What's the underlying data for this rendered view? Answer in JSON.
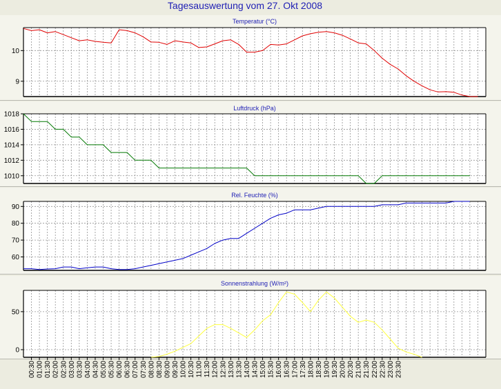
{
  "page": {
    "title": "Tagesauswertung vom 27. Okt 2008",
    "background": "#ecece0",
    "title_color": "#1e1eb4",
    "subtitle_color": "#1e1eb4"
  },
  "time_labels": [
    "00:30",
    "01:00",
    "01:30",
    "02:00",
    "02:30",
    "03:00",
    "03:30",
    "04:00",
    "04:30",
    "05:00",
    "05:30",
    "06:00",
    "06:30",
    "07:00",
    "07:30",
    "08:00",
    "08:30",
    "09:00",
    "09:30",
    "10:00",
    "10:30",
    "11:00",
    "11:30",
    "12:00",
    "12:30",
    "13:00",
    "13:30",
    "14:00",
    "14:30",
    "15:00",
    "15:30",
    "16:00",
    "16:30",
    "17:00",
    "17:30",
    "18:00",
    "18:30",
    "19:00",
    "19:30",
    "20:00",
    "20:30",
    "21:00",
    "21:30",
    "22:00",
    "22:30",
    "23:00",
    "23:30"
  ],
  "chart_data": [
    {
      "type": "line",
      "title": "Temperatur (°C)",
      "grid": true,
      "ylim": [
        8.5,
        10.75
      ],
      "yticks": [
        9,
        10
      ],
      "series": [
        {
          "color": "#e00000",
          "points": [
            [
              0,
              10.72
            ],
            [
              1,
              10.65
            ],
            [
              2,
              10.68
            ],
            [
              3,
              10.58
            ],
            [
              4,
              10.62
            ],
            [
              5,
              10.52
            ],
            [
              6,
              10.42
            ],
            [
              7,
              10.32
            ],
            [
              8,
              10.35
            ],
            [
              9,
              10.3
            ],
            [
              10,
              10.27
            ],
            [
              11,
              10.25
            ],
            [
              12,
              10.68
            ],
            [
              13,
              10.65
            ],
            [
              14,
              10.58
            ],
            [
              15,
              10.45
            ],
            [
              16,
              10.28
            ],
            [
              17,
              10.27
            ],
            [
              18,
              10.2
            ],
            [
              19,
              10.32
            ],
            [
              20,
              10.28
            ],
            [
              21,
              10.25
            ],
            [
              22,
              10.1
            ],
            [
              23,
              10.12
            ],
            [
              24,
              10.22
            ],
            [
              25,
              10.32
            ],
            [
              26,
              10.35
            ],
            [
              27,
              10.2
            ],
            [
              28,
              9.95
            ],
            [
              29,
              9.95
            ],
            [
              30,
              10.0
            ],
            [
              31,
              10.2
            ],
            [
              32,
              10.18
            ],
            [
              33,
              10.22
            ],
            [
              34,
              10.35
            ],
            [
              35,
              10.48
            ],
            [
              36,
              10.55
            ],
            [
              37,
              10.6
            ],
            [
              38,
              10.62
            ],
            [
              39,
              10.58
            ],
            [
              40,
              10.5
            ],
            [
              41,
              10.38
            ],
            [
              42,
              10.25
            ],
            [
              43,
              10.22
            ],
            [
              44,
              10.0
            ],
            [
              45,
              9.75
            ],
            [
              46,
              9.55
            ],
            [
              47,
              9.4
            ],
            [
              48,
              9.18
            ],
            [
              49,
              9.0
            ],
            [
              50,
              8.85
            ],
            [
              51,
              8.72
            ],
            [
              52,
              8.65
            ],
            [
              53,
              8.66
            ],
            [
              54,
              8.64
            ],
            [
              55,
              8.55
            ],
            [
              56,
              8.5
            ],
            [
              57,
              8.5
            ]
          ]
        }
      ]
    },
    {
      "type": "line",
      "title": "Luftdruck (hPa)",
      "grid": true,
      "ylim": [
        1009,
        1018
      ],
      "yticks": [
        1010,
        1012,
        1014,
        1016,
        1018
      ],
      "series": [
        {
          "color": "#007800",
          "points": [
            [
              0,
              1018
            ],
            [
              1,
              1017
            ],
            [
              2,
              1017
            ],
            [
              3,
              1017
            ],
            [
              4,
              1016
            ],
            [
              5,
              1016
            ],
            [
              6,
              1015
            ],
            [
              7,
              1015
            ],
            [
              8,
              1014
            ],
            [
              9,
              1014
            ],
            [
              10,
              1014
            ],
            [
              11,
              1013
            ],
            [
              12,
              1013
            ],
            [
              13,
              1013
            ],
            [
              14,
              1012
            ],
            [
              15,
              1012
            ],
            [
              16,
              1012
            ],
            [
              17,
              1011
            ],
            [
              18,
              1011
            ],
            [
              19,
              1011
            ],
            [
              20,
              1011
            ],
            [
              21,
              1011
            ],
            [
              22,
              1011
            ],
            [
              23,
              1011
            ],
            [
              24,
              1011
            ],
            [
              25,
              1011
            ],
            [
              26,
              1011
            ],
            [
              27,
              1011
            ],
            [
              28,
              1011
            ],
            [
              29,
              1010
            ],
            [
              30,
              1010
            ],
            [
              31,
              1010
            ],
            [
              32,
              1010
            ],
            [
              33,
              1010
            ],
            [
              34,
              1010
            ],
            [
              35,
              1010
            ],
            [
              36,
              1010
            ],
            [
              37,
              1010
            ],
            [
              38,
              1010
            ],
            [
              39,
              1010
            ],
            [
              40,
              1010
            ],
            [
              41,
              1010
            ],
            [
              42,
              1010
            ],
            [
              43,
              1009
            ],
            [
              44,
              1009
            ],
            [
              45,
              1010
            ],
            [
              46,
              1010
            ],
            [
              47,
              1010
            ],
            [
              48,
              1010
            ],
            [
              49,
              1010
            ],
            [
              50,
              1010
            ],
            [
              51,
              1010
            ],
            [
              52,
              1010
            ],
            [
              53,
              1010
            ],
            [
              54,
              1010
            ],
            [
              55,
              1010
            ],
            [
              56,
              1010
            ]
          ]
        }
      ]
    },
    {
      "type": "line",
      "title": "Rel. Feuchte (%)",
      "grid": true,
      "ylim": [
        52,
        93
      ],
      "yticks": [
        60,
        70,
        80,
        90
      ],
      "series": [
        {
          "color": "#0000c8",
          "points": [
            [
              0,
              53
            ],
            [
              1,
              53
            ],
            [
              2,
              52.5
            ],
            [
              3,
              52.8
            ],
            [
              4,
              53
            ],
            [
              5,
              54
            ],
            [
              6,
              54
            ],
            [
              7,
              53
            ],
            [
              8,
              53.5
            ],
            [
              9,
              54
            ],
            [
              10,
              54
            ],
            [
              11,
              53
            ],
            [
              12,
              52.5
            ],
            [
              13,
              52.5
            ],
            [
              14,
              53
            ],
            [
              15,
              54
            ],
            [
              16,
              55
            ],
            [
              17,
              56
            ],
            [
              18,
              57
            ],
            [
              19,
              58
            ],
            [
              20,
              59
            ],
            [
              21,
              61
            ],
            [
              22,
              63
            ],
            [
              23,
              65
            ],
            [
              24,
              68
            ],
            [
              25,
              70
            ],
            [
              26,
              71
            ],
            [
              27,
              71
            ],
            [
              28,
              74
            ],
            [
              29,
              77
            ],
            [
              30,
              80
            ],
            [
              31,
              83
            ],
            [
              32,
              85
            ],
            [
              33,
              86
            ],
            [
              34,
              88
            ],
            [
              35,
              88
            ],
            [
              36,
              88
            ],
            [
              37,
              89
            ],
            [
              38,
              90
            ],
            [
              39,
              90
            ],
            [
              40,
              90
            ],
            [
              41,
              90
            ],
            [
              42,
              90
            ],
            [
              43,
              90
            ],
            [
              44,
              90
            ],
            [
              45,
              91
            ],
            [
              46,
              91
            ],
            [
              47,
              91
            ],
            [
              48,
              92
            ],
            [
              49,
              92
            ],
            [
              50,
              92
            ],
            [
              51,
              92
            ],
            [
              52,
              92
            ],
            [
              53,
              92
            ],
            [
              54,
              93
            ],
            [
              55,
              93
            ],
            [
              56,
              93
            ]
          ]
        }
      ]
    },
    {
      "type": "line",
      "title": "Sonnenstrahlung (W/m²)",
      "grid": true,
      "ylim": [
        -10,
        78
      ],
      "yticks": [
        0,
        50
      ],
      "series": [
        {
          "color": "#ffff3c",
          "points": [
            [
              16,
              -10
            ],
            [
              17,
              -9
            ],
            [
              18,
              -6
            ],
            [
              19,
              -2
            ],
            [
              20,
              3
            ],
            [
              21,
              8
            ],
            [
              22,
              18
            ],
            [
              23,
              28
            ],
            [
              24,
              33
            ],
            [
              25,
              33
            ],
            [
              26,
              28
            ],
            [
              27,
              22
            ],
            [
              28,
              16
            ],
            [
              29,
              26
            ],
            [
              30,
              38
            ],
            [
              31,
              46
            ],
            [
              32,
              62
            ],
            [
              33,
              76
            ],
            [
              34,
              73
            ],
            [
              35,
              62
            ],
            [
              36,
              50
            ],
            [
              37,
              65
            ],
            [
              38,
              76
            ],
            [
              39,
              68
            ],
            [
              40,
              56
            ],
            [
              41,
              44
            ],
            [
              42,
              36
            ],
            [
              43,
              39
            ],
            [
              44,
              36
            ],
            [
              45,
              26
            ],
            [
              46,
              14
            ],
            [
              47,
              2
            ],
            [
              48,
              -3
            ],
            [
              49,
              -6
            ],
            [
              50,
              -10
            ]
          ]
        }
      ]
    }
  ]
}
